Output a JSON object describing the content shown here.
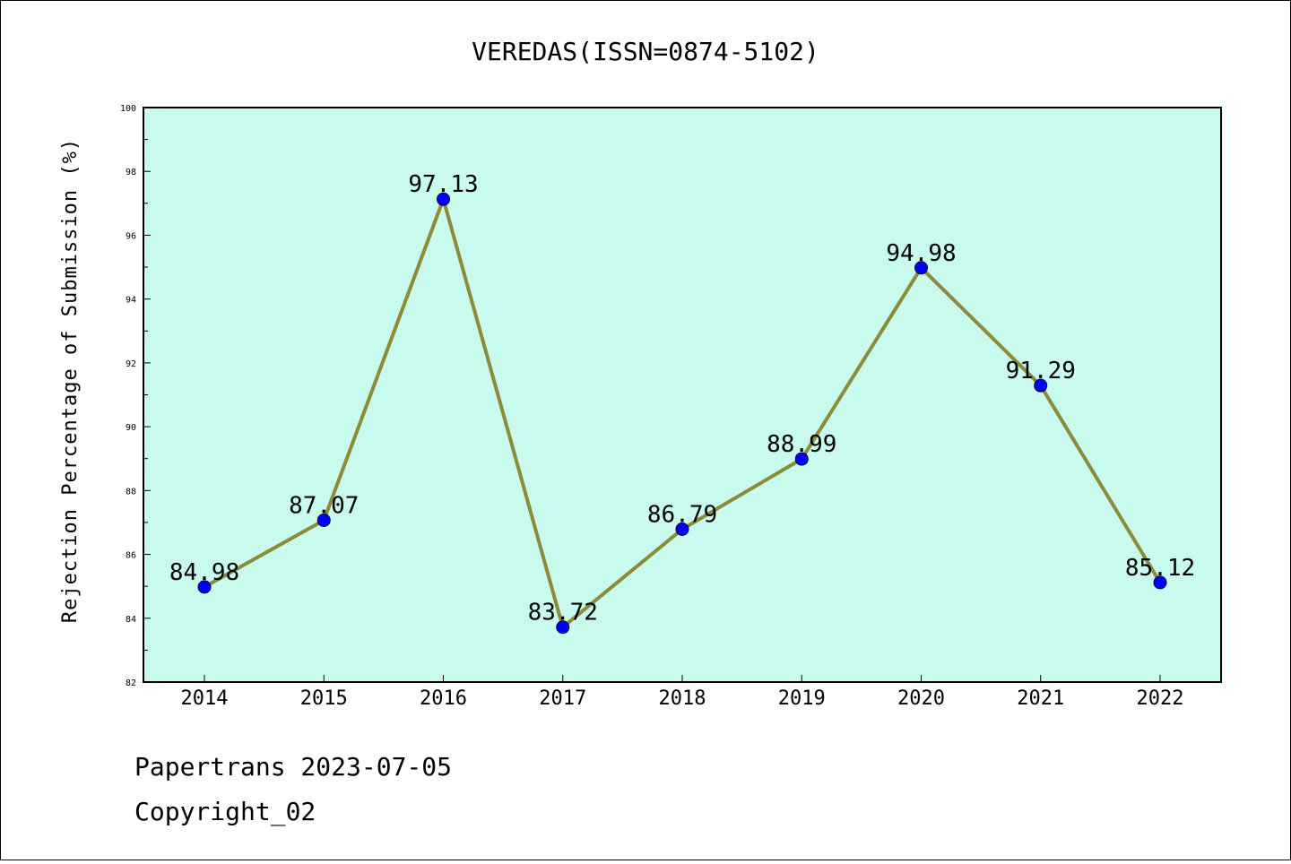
{
  "chart_data": {
    "type": "line",
    "title": "VEREDAS(ISSN=0874-5102)",
    "xlabel": "",
    "ylabel": "Rejection Percentage of Submission (%)",
    "categories": [
      "2014",
      "2015",
      "2016",
      "2017",
      "2018",
      "2019",
      "2020",
      "2021",
      "2022"
    ],
    "series": [
      {
        "values": [
          84.98,
          87.07,
          97.13,
          83.72,
          86.79,
          88.99,
          94.98,
          91.29,
          85.12
        ],
        "labels": [
          "84.98",
          "87.07",
          "97.13",
          "83.72",
          "86.79",
          "88.99",
          "94.98",
          "91.29",
          "85.12"
        ]
      }
    ],
    "ylim": [
      82,
      100
    ],
    "yticks": [
      "82",
      "84",
      "86",
      "88",
      "90",
      "92",
      "94",
      "96",
      "98",
      "100"
    ],
    "grid": false,
    "colors": {
      "background": "#c8fbee",
      "line": "#8b8b3a",
      "marker": "#0000ff"
    }
  },
  "footer": {
    "line1": "Papertrans 2023-07-05",
    "line2": "Copyright_02"
  }
}
